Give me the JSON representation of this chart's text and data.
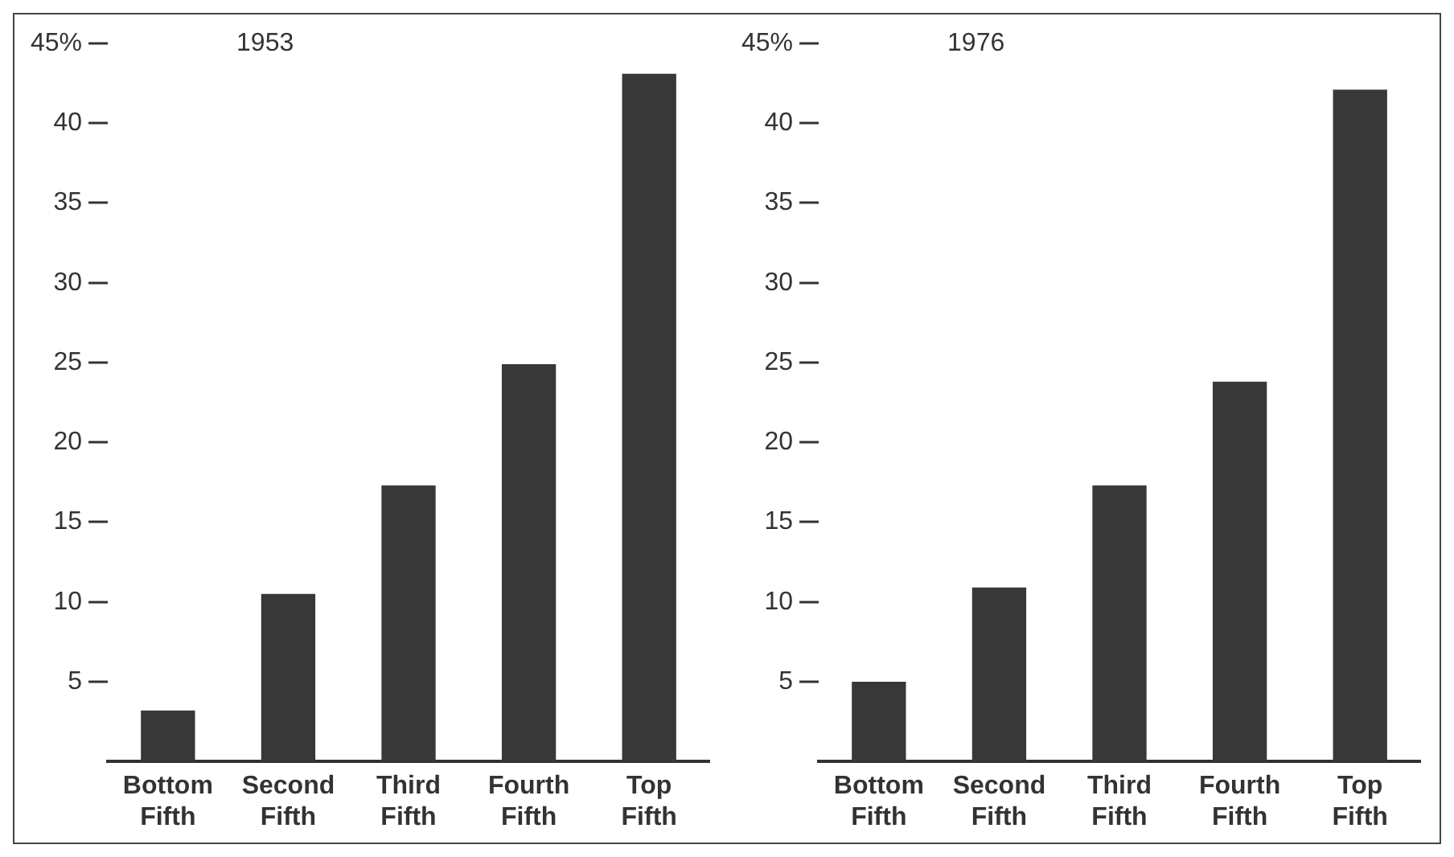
{
  "chart_data": [
    {
      "type": "bar",
      "title": "1953",
      "categories": [
        "Bottom Fifth",
        "Second Fifth",
        "Third Fifth",
        "Fourth Fifth",
        "Top Fifth"
      ],
      "values": [
        3.2,
        10.5,
        17.3,
        24.9,
        43.1
      ],
      "color": "#383838",
      "ylim": [
        0,
        45
      ],
      "yticks": [
        5,
        10,
        15,
        20,
        25,
        30,
        35,
        40,
        {
          "value": 45,
          "label": "45%"
        }
      ],
      "grid": false,
      "legend": false
    },
    {
      "type": "bar",
      "title": "1976",
      "categories": [
        "Bottom Fifth",
        "Second Fifth",
        "Third Fifth",
        "Fourth Fifth",
        "Top Fifth"
      ],
      "values": [
        5.0,
        10.9,
        17.3,
        23.8,
        42.1
      ],
      "color": "#383838",
      "ylim": [
        0,
        45
      ],
      "yticks": [
        5,
        10,
        15,
        20,
        25,
        30,
        35,
        40,
        {
          "value": 45,
          "label": "45%"
        }
      ],
      "grid": false,
      "legend": false
    }
  ]
}
